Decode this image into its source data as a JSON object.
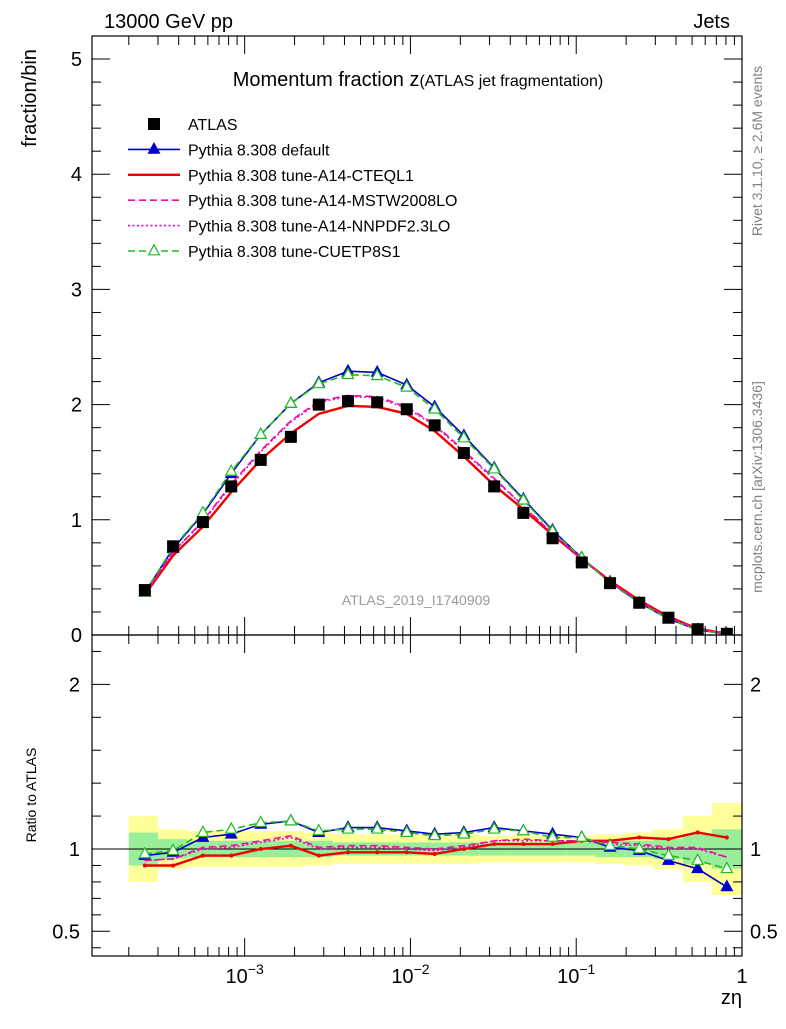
{
  "header": {
    "left": "13000 GeV pp",
    "right": "Jets"
  },
  "side_labels": {
    "rivet": "Rivet 3.1.10, ≥ 2.6M events",
    "mcplots": "mcplots.cern.ch [arXiv:1306.3436]"
  },
  "chart_data": {
    "type": "line",
    "title_main": "Momentum fraction z",
    "title_sub": "(ATLAS jet fragmentation)",
    "analysis_label": "ATLAS_2019_I1740909",
    "xlabel": "zη",
    "ylabel": "fraction/bin",
    "xscale": "log",
    "xlim": [
      0.00012,
      1.0
    ],
    "ylim": [
      0,
      5.2
    ],
    "ratio_ylabel": "Ratio to ATLAS",
    "ratio_ylim": [
      0.35,
      2.3
    ],
    "main_yticks": [
      {
        "v": 0,
        "label": "0"
      },
      {
        "v": 1,
        "label": "1"
      },
      {
        "v": 2,
        "label": "2"
      },
      {
        "v": 3,
        "label": "3"
      },
      {
        "v": 4,
        "label": "4"
      },
      {
        "v": 5,
        "label": "5"
      }
    ],
    "ratio_yticks": [
      {
        "v": 0.5,
        "label": "0.5"
      },
      {
        "v": 1,
        "label": "1"
      },
      {
        "v": 2,
        "label": "2"
      }
    ],
    "xticks": [
      {
        "v": 0.001,
        "base": "10",
        "exp": "−3"
      },
      {
        "v": 0.01,
        "base": "10",
        "exp": "−2"
      },
      {
        "v": 0.1,
        "base": "10",
        "exp": "−1"
      },
      {
        "v": 1,
        "base": "1",
        "exp": ""
      }
    ],
    "x": [
      0.00025,
      0.00037,
      0.00056,
      0.00083,
      0.00125,
      0.0019,
      0.0028,
      0.0042,
      0.0063,
      0.0095,
      0.014,
      0.021,
      0.032,
      0.048,
      0.072,
      0.108,
      0.16,
      0.24,
      0.36,
      0.54,
      0.81
    ],
    "x_edges": [
      0.0002,
      0.0003,
      0.00045,
      0.00068,
      0.001,
      0.0015,
      0.0023,
      0.0034,
      0.0051,
      0.0077,
      0.0115,
      0.017,
      0.026,
      0.039,
      0.058,
      0.087,
      0.13,
      0.195,
      0.29,
      0.44,
      0.66,
      1.0
    ],
    "data": {
      "name": "ATLAS",
      "color": "#000000",
      "values": [
        0.39,
        0.77,
        0.98,
        1.29,
        1.52,
        1.72,
        2.0,
        2.03,
        2.02,
        1.96,
        1.82,
        1.58,
        1.29,
        1.06,
        0.84,
        0.63,
        0.45,
        0.28,
        0.15,
        0.05,
        0.01
      ],
      "band_stat": [
        0.1,
        0.06,
        0.05,
        0.05,
        0.05,
        0.05,
        0.05,
        0.04,
        0.04,
        0.04,
        0.04,
        0.04,
        0.04,
        0.04,
        0.04,
        0.04,
        0.05,
        0.05,
        0.06,
        0.09,
        0.12
      ],
      "band_total": [
        0.2,
        0.12,
        0.11,
        0.11,
        0.11,
        0.11,
        0.1,
        0.09,
        0.09,
        0.09,
        0.09,
        0.09,
        0.08,
        0.08,
        0.08,
        0.08,
        0.09,
        0.1,
        0.12,
        0.2,
        0.28
      ]
    },
    "series": [
      {
        "name": "Pythia 8.308 default",
        "color": "#0000cc",
        "style": "solid",
        "marker": "triangle-filled",
        "values": [
          0.37,
          0.75,
          1.05,
          1.4,
          1.74,
          2.01,
          2.19,
          2.29,
          2.28,
          2.17,
          1.98,
          1.73,
          1.45,
          1.18,
          0.91,
          0.67,
          0.46,
          0.28,
          0.14,
          0.045,
          0.0077
        ],
        "ratio": [
          0.96,
          0.98,
          1.07,
          1.09,
          1.15,
          1.17,
          1.1,
          1.13,
          1.13,
          1.11,
          1.09,
          1.1,
          1.13,
          1.11,
          1.09,
          1.07,
          1.01,
          0.99,
          0.93,
          0.88,
          0.77
        ]
      },
      {
        "name": "Pythia 8.308 tune-A14-CTEQL1",
        "color": "#ee0000",
        "style": "solid",
        "marker": "none",
        "values": [
          0.35,
          0.69,
          0.94,
          1.24,
          1.52,
          1.75,
          1.92,
          1.99,
          1.98,
          1.92,
          1.77,
          1.55,
          1.3,
          1.09,
          0.87,
          0.66,
          0.47,
          0.3,
          0.16,
          0.055,
          0.011
        ],
        "ratio": [
          0.9,
          0.9,
          0.96,
          0.96,
          1.0,
          1.02,
          0.96,
          0.98,
          0.98,
          0.98,
          0.97,
          1.0,
          1.03,
          1.03,
          1.03,
          1.05,
          1.05,
          1.07,
          1.06,
          1.1,
          1.07
        ]
      },
      {
        "name": "Pythia 8.308 tune-A14-MSTW2008LO",
        "color": "#ee1199",
        "style": "dashed",
        "marker": "none",
        "values": [
          0.36,
          0.72,
          0.99,
          1.31,
          1.6,
          1.86,
          2.03,
          2.08,
          2.07,
          1.98,
          1.83,
          1.6,
          1.36,
          1.12,
          0.88,
          0.66,
          0.46,
          0.29,
          0.15,
          0.051,
          0.0095
        ],
        "ratio": [
          0.93,
          0.94,
          1.01,
          1.02,
          1.05,
          1.08,
          1.01,
          1.02,
          1.02,
          1.01,
          1.0,
          1.02,
          1.05,
          1.06,
          1.05,
          1.05,
          1.04,
          1.03,
          1.01,
          1.01,
          0.95
        ]
      },
      {
        "name": "Pythia 8.308 tune-A14-NNPDF2.3LO",
        "color": "#ee00cc",
        "style": "dotted",
        "marker": "none",
        "values": [
          0.36,
          0.72,
          0.98,
          1.3,
          1.59,
          1.85,
          2.02,
          2.07,
          2.06,
          1.97,
          1.82,
          1.59,
          1.35,
          1.12,
          0.88,
          0.66,
          0.46,
          0.29,
          0.15,
          0.05,
          0.0095
        ],
        "ratio": [
          0.93,
          0.94,
          1.0,
          1.01,
          1.04,
          1.07,
          1.0,
          1.01,
          1.01,
          1.0,
          0.99,
          1.01,
          1.05,
          1.05,
          1.05,
          1.05,
          1.03,
          1.02,
          1.0,
          1.0,
          0.95
        ]
      },
      {
        "name": "Pythia 8.308 tune-CUETP8S1",
        "color": "#22bb22",
        "style": "dashed",
        "marker": "triangle-open",
        "values": [
          0.37,
          0.76,
          1.06,
          1.42,
          1.74,
          2.01,
          2.18,
          2.26,
          2.25,
          2.15,
          1.96,
          1.71,
          1.44,
          1.17,
          0.9,
          0.67,
          0.45,
          0.28,
          0.14,
          0.044,
          0.0088
        ],
        "ratio": [
          0.97,
          0.99,
          1.1,
          1.12,
          1.16,
          1.17,
          1.11,
          1.12,
          1.12,
          1.1,
          1.08,
          1.09,
          1.12,
          1.11,
          1.07,
          1.07,
          1.02,
          1.0,
          0.96,
          0.93,
          0.88
        ]
      }
    ]
  }
}
